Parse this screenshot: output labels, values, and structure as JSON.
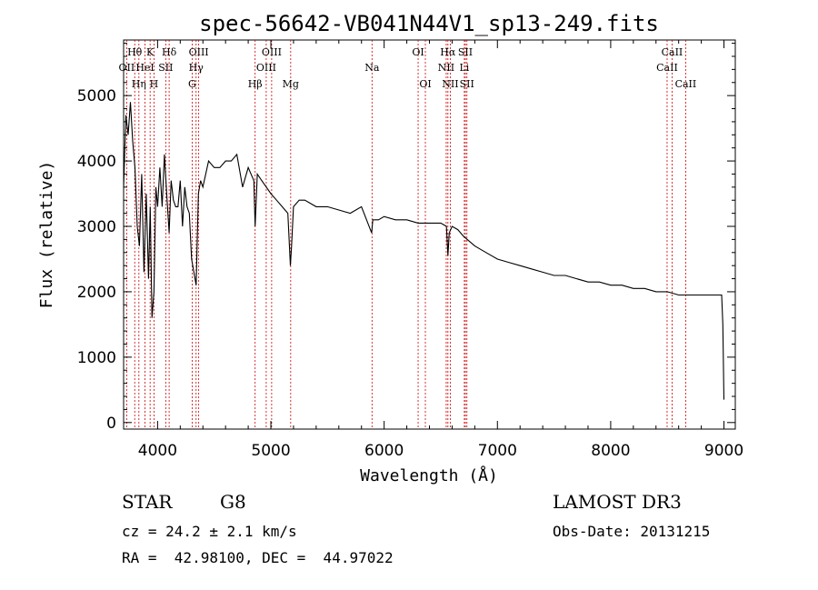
{
  "chart_data": {
    "type": "line",
    "title": "spec-56642-VB041N44V1_sp13-249.fits",
    "xlabel": "Wavelength (Å)",
    "ylabel": "Flux (relative)",
    "xlim": [
      3700,
      9100
    ],
    "ylim": [
      -100,
      5850
    ],
    "xticks": [
      4000,
      5000,
      6000,
      7000,
      8000,
      9000
    ],
    "yticks": [
      0,
      1000,
      2000,
      3000,
      4000,
      5000
    ],
    "grid": false,
    "series": [
      {
        "name": "flux",
        "x": [
          3700,
          3720,
          3740,
          3760,
          3780,
          3800,
          3820,
          3840,
          3860,
          3880,
          3900,
          3920,
          3935,
          3950,
          3968,
          3985,
          4000,
          4020,
          4040,
          4060,
          4080,
          4102,
          4120,
          4140,
          4160,
          4180,
          4200,
          4220,
          4240,
          4260,
          4280,
          4300,
          4320,
          4340,
          4360,
          4380,
          4400,
          4450,
          4500,
          4550,
          4600,
          4650,
          4700,
          4750,
          4800,
          4850,
          4861,
          4880,
          4920,
          4960,
          5000,
          5050,
          5100,
          5150,
          5172,
          5183,
          5200,
          5250,
          5300,
          5400,
          5500,
          5600,
          5700,
          5800,
          5890,
          5900,
          5950,
          6000,
          6100,
          6200,
          6300,
          6400,
          6500,
          6550,
          6563,
          6575,
          6600,
          6650,
          6700,
          6800,
          6900,
          7000,
          7100,
          7200,
          7300,
          7400,
          7500,
          7600,
          7700,
          7800,
          7900,
          8000,
          8100,
          8200,
          8300,
          8400,
          8500,
          8600,
          8700,
          8800,
          8900,
          8980,
          8990,
          9000
        ],
        "y": [
          3600,
          4700,
          4400,
          4900,
          4300,
          3900,
          3000,
          2700,
          3800,
          2300,
          3500,
          2200,
          3300,
          1600,
          2000,
          3600,
          3300,
          3900,
          3300,
          4100,
          3500,
          2900,
          3700,
          3400,
          3300,
          3300,
          3700,
          3000,
          3600,
          3300,
          3200,
          2500,
          2300,
          2100,
          3500,
          3700,
          3600,
          4000,
          3900,
          3900,
          4000,
          4000,
          4100,
          3600,
          3900,
          3700,
          3000,
          3800,
          3700,
          3600,
          3500,
          3400,
          3300,
          3200,
          2400,
          2700,
          3300,
          3400,
          3400,
          3300,
          3300,
          3250,
          3200,
          3300,
          2900,
          3100,
          3100,
          3150,
          3100,
          3100,
          3050,
          3050,
          3050,
          3000,
          2550,
          2900,
          3000,
          2950,
          2850,
          2700,
          2600,
          2500,
          2450,
          2400,
          2350,
          2300,
          2250,
          2250,
          2200,
          2150,
          2150,
          2100,
          2100,
          2050,
          2050,
          2000,
          2000,
          1950,
          1950,
          1950,
          1950,
          1950,
          1500,
          350
        ]
      }
    ],
    "lines": [
      {
        "label": "OII",
        "x": 3727,
        "row": 2,
        "color": "#cc0000"
      },
      {
        "label": "Hθ",
        "x": 3798,
        "row": 1,
        "color": "#cc0000"
      },
      {
        "label": "Hη",
        "x": 3835,
        "row": 3,
        "color": "#cc0000"
      },
      {
        "label": "HeI",
        "x": 3889,
        "row": 2,
        "color": "#cc0000"
      },
      {
        "label": "K",
        "x": 3934,
        "row": 1,
        "color": "#cc0000"
      },
      {
        "label": "H",
        "x": 3968,
        "row": 3,
        "color": "#cc0000"
      },
      {
        "label": "SII",
        "x": 4072,
        "row": 2,
        "color": "#cc0000"
      },
      {
        "label": "Hδ",
        "x": 4102,
        "row": 1,
        "color": "#cc0000"
      },
      {
        "label": "Hγ",
        "x": 4340,
        "row": 2,
        "color": "#cc0000"
      },
      {
        "label": "G",
        "x": 4305,
        "row": 3,
        "color": "#cc0000"
      },
      {
        "label": "OIII",
        "x": 4363,
        "row": 1,
        "color": "#cc0000"
      },
      {
        "label": "Hβ",
        "x": 4861,
        "row": 3,
        "color": "#cc0000"
      },
      {
        "label": "OIII",
        "x": 4959,
        "row": 2,
        "color": "#cc0000"
      },
      {
        "label": "OIII",
        "x": 5007,
        "row": 1,
        "color": "#cc0000"
      },
      {
        "label": "Mg",
        "x": 5175,
        "row": 3,
        "color": "#cc0000"
      },
      {
        "label": "Na",
        "x": 5893,
        "row": 2,
        "color": "#cc0000"
      },
      {
        "label": "OI",
        "x": 6300,
        "row": 1,
        "color": "#cc0000"
      },
      {
        "label": "OI",
        "x": 6364,
        "row": 3,
        "color": "#cc0000"
      },
      {
        "label": "NII",
        "x": 6548,
        "row": 2,
        "color": "#cc0000"
      },
      {
        "label": "Hα",
        "x": 6563,
        "row": 1,
        "color": "#cc0000"
      },
      {
        "label": "NII",
        "x": 6584,
        "row": 3,
        "color": "#cc0000"
      },
      {
        "label": "Li",
        "x": 6708,
        "row": 2,
        "color": "#cc0000"
      },
      {
        "label": "SII",
        "x": 6717,
        "row": 1,
        "color": "#cc0000"
      },
      {
        "label": "SII",
        "x": 6731,
        "row": 3,
        "color": "#cc0000"
      },
      {
        "label": "CaII",
        "x": 8498,
        "row": 2,
        "color": "#cc0000"
      },
      {
        "label": "CaII",
        "x": 8542,
        "row": 1,
        "color": "#cc0000"
      },
      {
        "label": "CaII",
        "x": 8662,
        "row": 3,
        "color": "#cc0000"
      }
    ]
  },
  "info": {
    "object_class": "STAR",
    "subclass": "G8",
    "survey": "LAMOST DR3",
    "redshift": "cz = 24.2 ± 2.1 km/s",
    "obs_date": "Obs-Date: 20131215",
    "coords": "RA =  42.98100, DEC =  44.97022"
  }
}
